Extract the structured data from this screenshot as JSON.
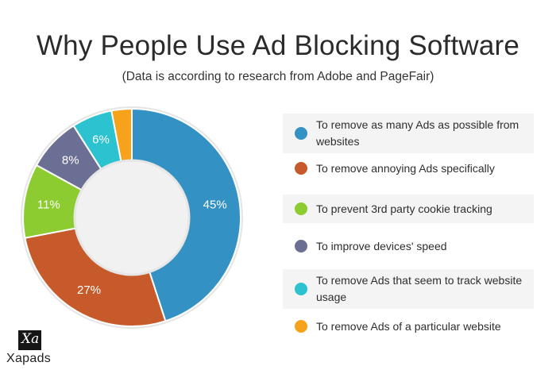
{
  "title": "Why People Use Ad Blocking Software",
  "subtitle": "(Data is according to research from Adobe and PageFair)",
  "logo": {
    "text": "Xapads",
    "mark": "Xa"
  },
  "colors": {
    "ring_background": "#e5e5e5",
    "center_fill": "#f1f1f1",
    "label_text": "#ffffff"
  },
  "chart_data": {
    "type": "pie",
    "variant": "donut",
    "title": "Why People Use Ad Blocking Software",
    "subtitle": "(Data is according to research from Adobe and PageFair)",
    "legend_position": "right",
    "slices": [
      {
        "label": "To remove as many Ads as possible from websites",
        "value": 45,
        "value_label": "45%",
        "color": "#3392c3"
      },
      {
        "label": "To remove annoying Ads specifically",
        "value": 27,
        "value_label": "27%",
        "color": "#c75a2a"
      },
      {
        "label": "To prevent 3rd party cookie tracking",
        "value": 11,
        "value_label": "11%",
        "color": "#8ccc30"
      },
      {
        "label": "To improve devices' speed",
        "value": 8,
        "value_label": "8%",
        "color": "#6b6f93"
      },
      {
        "label": "To remove Ads that seem to track website usage",
        "value": 6,
        "value_label": "6%",
        "color": "#2cc2d0"
      },
      {
        "label": "To remove Ads of a particular website",
        "value": 3,
        "value_label": "",
        "color": "#f7a21b"
      }
    ]
  }
}
